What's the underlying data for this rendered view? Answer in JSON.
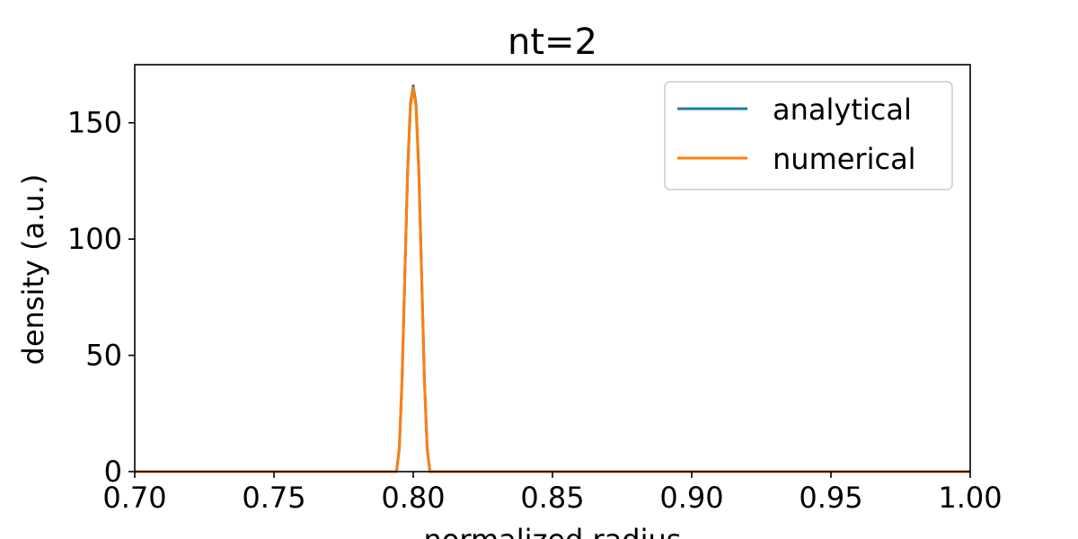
{
  "chart_data": {
    "type": "line",
    "title": "nt=2",
    "xlabel": "normalized radius",
    "ylabel": "density (a.u.)",
    "xlim": [
      0.7,
      1.0
    ],
    "ylim": [
      0,
      175
    ],
    "xticks": [
      0.7,
      0.75,
      0.8,
      0.85,
      0.9,
      0.95,
      1.0
    ],
    "xtick_labels": [
      "0.70",
      "0.75",
      "0.80",
      "0.85",
      "0.90",
      "0.95",
      "1.00"
    ],
    "yticks": [
      0,
      50,
      100,
      150
    ],
    "ytick_labels": [
      "0",
      "50",
      "100",
      "150"
    ],
    "grid": false,
    "legend_position": "top-right",
    "series": [
      {
        "name": "analytical",
        "color": "#1f77b4",
        "x": [
          0.7,
          0.79,
          0.794,
          0.795,
          0.796,
          0.797,
          0.798,
          0.799,
          0.8,
          0.801,
          0.802,
          0.803,
          0.804,
          0.805,
          0.806,
          0.81,
          1.0
        ],
        "y": [
          0,
          0,
          0,
          10,
          40,
          85,
          130,
          158,
          166,
          158,
          130,
          85,
          40,
          10,
          0,
          0,
          0
        ]
      },
      {
        "name": "numerical",
        "color": "#ff7f0e",
        "x": [
          0.7,
          0.79,
          0.794,
          0.795,
          0.796,
          0.797,
          0.798,
          0.799,
          0.8,
          0.801,
          0.802,
          0.803,
          0.804,
          0.805,
          0.806,
          0.81,
          1.0
        ],
        "y": [
          0,
          0,
          0,
          10,
          40,
          85,
          129,
          157,
          165,
          157,
          129,
          85,
          40,
          10,
          0,
          0,
          0
        ]
      }
    ]
  }
}
